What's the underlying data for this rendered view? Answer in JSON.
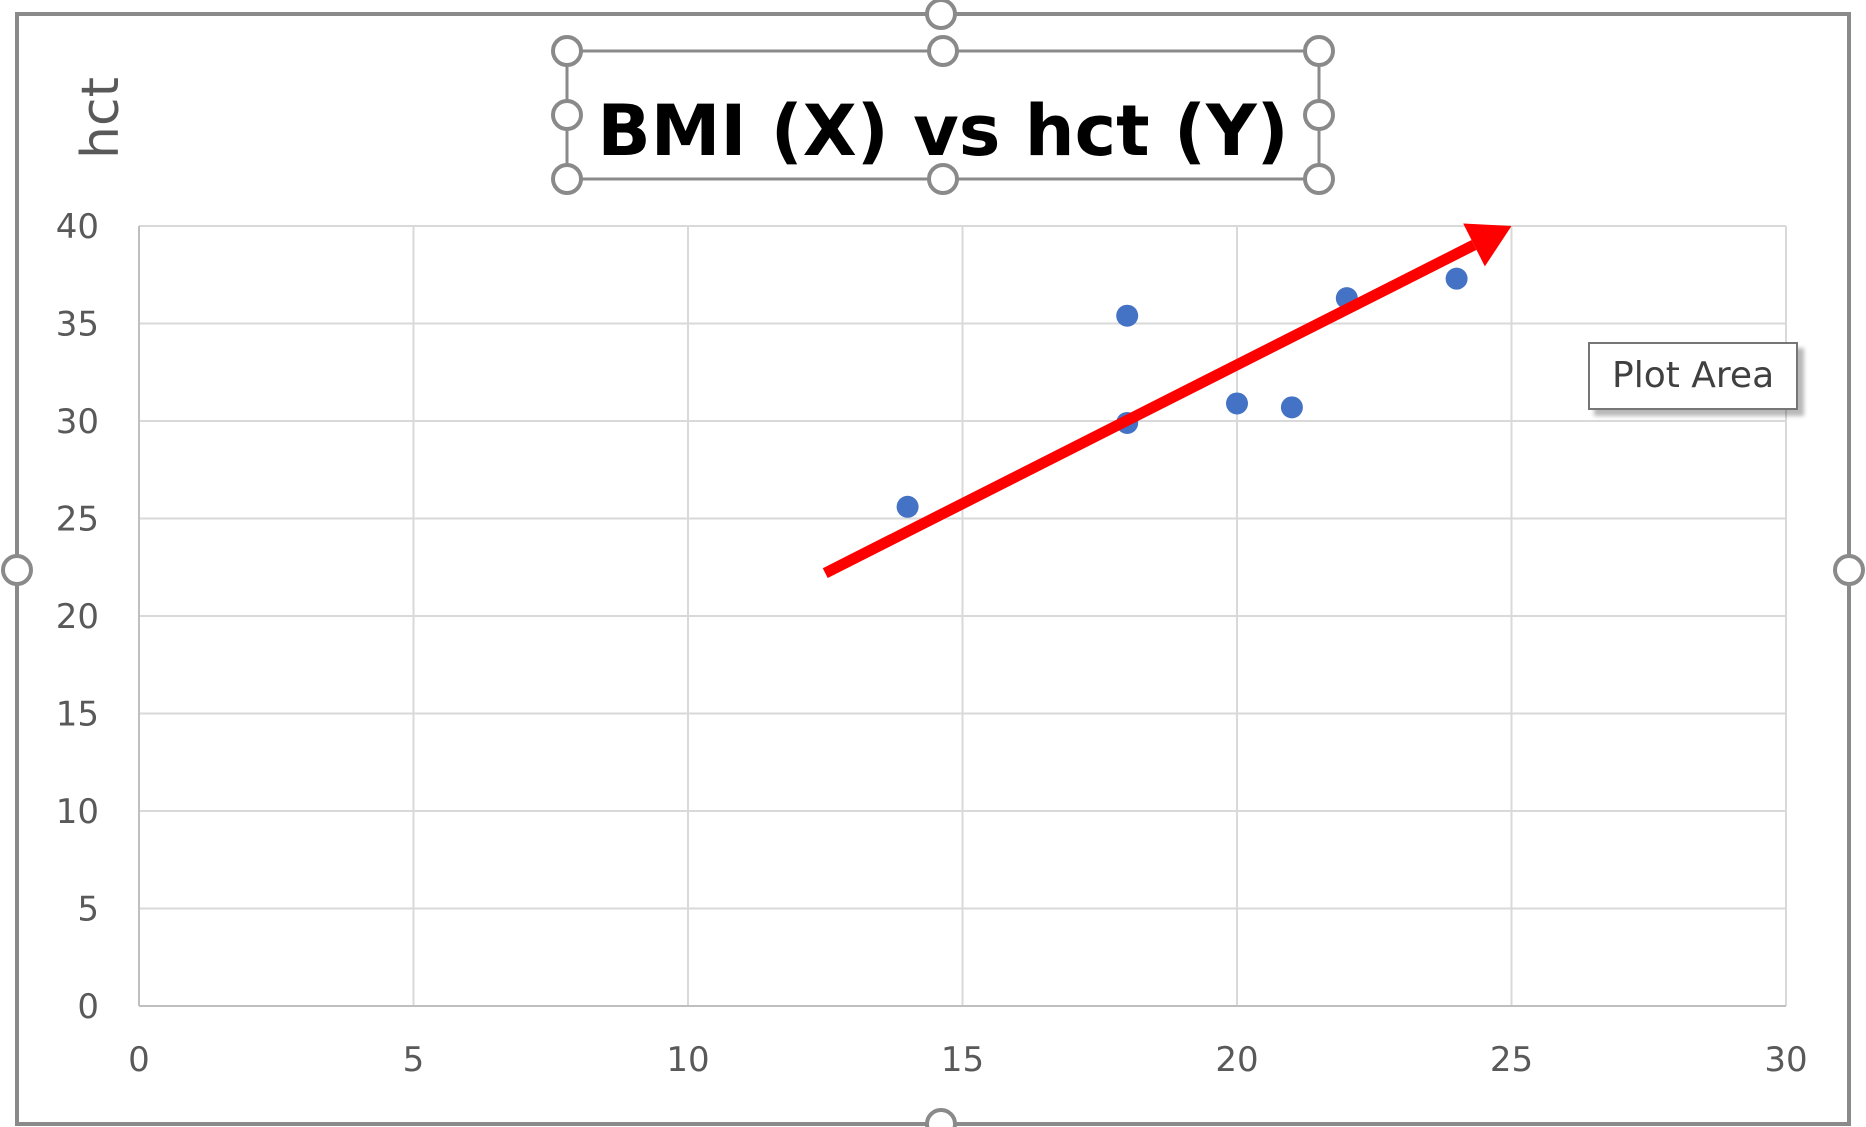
{
  "chart_data": {
    "type": "scatter",
    "title": "BMI (X) vs hct (Y)",
    "ylabel": "hct",
    "xlabel": "",
    "xlim": [
      0,
      30
    ],
    "ylim": [
      0,
      40
    ],
    "xticks": [
      "0",
      "5",
      "10",
      "15",
      "20",
      "25",
      "30"
    ],
    "yticks": [
      "0",
      "5",
      "10",
      "15",
      "20",
      "25",
      "30",
      "35",
      "40"
    ],
    "grid": true,
    "legend": "none",
    "series": [
      {
        "x": [
          14,
          18,
          18,
          20,
          21,
          22,
          24
        ],
        "y": [
          25.6,
          35.4,
          29.9,
          30.9,
          30.7,
          36.3,
          37.3
        ],
        "color": "#4472C4"
      }
    ],
    "annotations": [
      {
        "type": "arrow",
        "from": [
          12.5,
          22.2
        ],
        "to": [
          25,
          40
        ],
        "color": "#FF0000"
      }
    ]
  },
  "tooltip": {
    "text": "Plot Area"
  }
}
